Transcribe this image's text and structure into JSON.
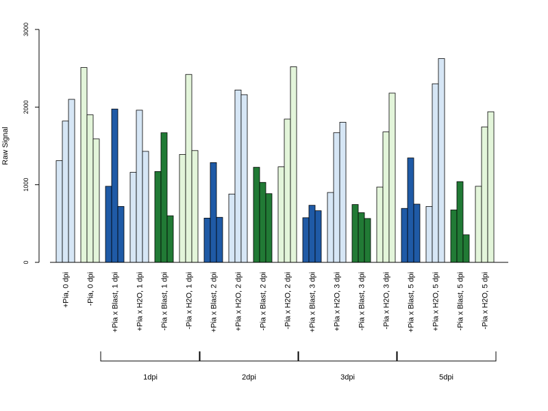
{
  "chart_data": {
    "type": "bar",
    "ylabel": "Raw Signal",
    "xlabel": "",
    "title": "",
    "ylim": [
      0,
      3000
    ],
    "yticks": [
      0,
      1000,
      2000,
      3000
    ],
    "colors": {
      "plus_control": "#d6e6f5",
      "minus_control": "#e3f5da",
      "plus_blast": "#1f5aa6",
      "minus_blast": "#217a35"
    },
    "categories": [
      "+Pia, 0 dpi",
      "-Pia, 0 dpi",
      "+Pia x Blast, 1 dpi",
      "+Pia x H2O, 1 dpi",
      "-Pia x Blast, 1 dpi",
      "-Pia x H2O, 1 dpi",
      "+Pia x Blast, 2 dpi",
      "+Pia x H2O, 2 dpi",
      "-Pia x Blast, 2 dpi",
      "-Pia x H2O, 2 dpi",
      "+Pia x Blast, 3 dpi",
      "+Pia x H2O, 3 dpi",
      "-Pia x Blast, 3 dpi",
      "-Pia x H2O, 3 dpi",
      "+Pia x Blast, 5 dpi",
      "+Pia x H2O, 5 dpi",
      "-Pia x Blast, 5 dpi",
      "-Pia x H2O, 5 dpi"
    ],
    "category_colors": [
      "plus_control",
      "minus_control",
      "plus_blast",
      "plus_control",
      "minus_blast",
      "minus_control",
      "plus_blast",
      "plus_control",
      "minus_blast",
      "minus_control",
      "plus_blast",
      "plus_control",
      "minus_blast",
      "minus_control",
      "plus_blast",
      "plus_control",
      "minus_blast",
      "minus_control"
    ],
    "replicate_values": [
      [
        1310,
        1820,
        2100
      ],
      [
        2510,
        1900,
        1590
      ],
      [
        980,
        1975,
        720
      ],
      [
        1160,
        1960,
        1430
      ],
      [
        1170,
        1670,
        600
      ],
      [
        1390,
        2420,
        1440
      ],
      [
        570,
        1285,
        580
      ],
      [
        880,
        2220,
        2160
      ],
      [
        1225,
        1030,
        885
      ],
      [
        1230,
        1845,
        2520
      ],
      [
        575,
        735,
        665
      ],
      [
        900,
        1670,
        1805
      ],
      [
        745,
        640,
        565
      ],
      [
        970,
        1680,
        2180
      ],
      [
        695,
        1345,
        750
      ],
      [
        720,
        2300,
        2625
      ],
      [
        675,
        1040,
        355
      ],
      [
        980,
        1745,
        1940
      ]
    ],
    "groups": [
      {
        "label": "1dpi",
        "from": 2,
        "to": 5
      },
      {
        "label": "2dpi",
        "from": 6,
        "to": 9
      },
      {
        "label": "3dpi",
        "from": 10,
        "to": 13
      },
      {
        "label": "5dpi",
        "from": 14,
        "to": 17
      }
    ]
  }
}
